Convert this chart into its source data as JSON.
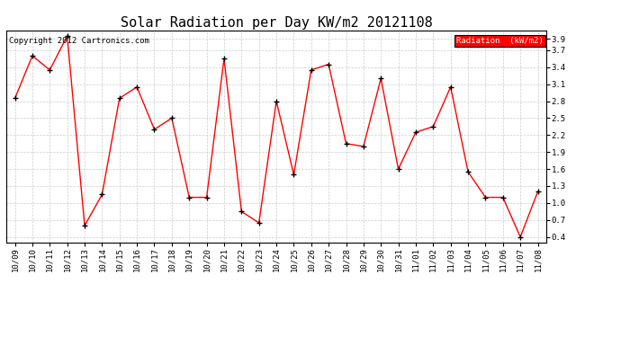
{
  "title": "Solar Radiation per Day KW/m2 20121108",
  "copyright": "Copyright 2012 Cartronics.com",
  "legend_label": "Radiation  (kW/m2)",
  "dates": [
    "10/09",
    "10/10",
    "10/11",
    "10/12",
    "10/13",
    "10/14",
    "10/15",
    "10/16",
    "10/17",
    "10/18",
    "10/19",
    "10/20",
    "10/21",
    "10/22",
    "10/23",
    "10/24",
    "10/25",
    "10/26",
    "10/27",
    "10/28",
    "10/29",
    "10/30",
    "10/31",
    "11/01",
    "11/02",
    "11/03",
    "11/04",
    "11/05",
    "11/06",
    "11/07",
    "11/08"
  ],
  "values": [
    2.85,
    3.6,
    3.35,
    3.95,
    0.6,
    1.15,
    2.85,
    3.05,
    2.3,
    2.5,
    1.1,
    1.1,
    3.55,
    0.85,
    0.65,
    2.8,
    1.5,
    3.35,
    3.45,
    2.05,
    2.0,
    3.2,
    1.6,
    2.25,
    2.35,
    3.05,
    1.55,
    1.1,
    1.1,
    0.4,
    1.2
  ],
  "line_color": "red",
  "marker": "+",
  "marker_color": "black",
  "bg_color": "white",
  "grid_color": "#cccccc",
  "ylim": [
    0.3,
    4.05
  ],
  "yticks": [
    0.4,
    0.7,
    1.0,
    1.3,
    1.6,
    1.9,
    2.2,
    2.5,
    2.8,
    3.1,
    3.4,
    3.7,
    3.9
  ],
  "legend_bg": "red",
  "legend_text_color": "white",
  "title_fontsize": 11,
  "copyright_fontsize": 6.5,
  "tick_fontsize": 6.5
}
